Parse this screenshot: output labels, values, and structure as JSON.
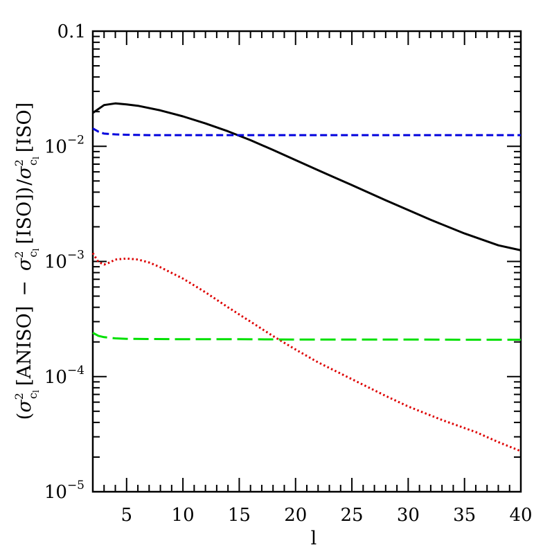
{
  "chart_data": {
    "type": "line",
    "title": "",
    "xlabel": "l",
    "ylabel": {
      "open": "(",
      "sigma": "σ",
      "sup": "2",
      "sub": "c",
      "subsub": "l",
      "aniso": "[ANISO]",
      "minus": "−",
      "iso": "[ISO])",
      "slash": "/",
      "iso2": "[ISO]"
    },
    "xlim": [
      2,
      40
    ],
    "ylim": [
      1e-05,
      0.1
    ],
    "yscale": "log",
    "x_ticks": [
      5,
      10,
      15,
      20,
      25,
      30,
      35,
      40
    ],
    "x_tick_labels": [
      "5",
      "10",
      "15",
      "20",
      "25",
      "30",
      "35",
      "40"
    ],
    "y_ticks": [
      {
        "value": 0.1,
        "base": "0.1",
        "exp": ""
      },
      {
        "value": 0.01,
        "base": "10",
        "exp": "−2"
      },
      {
        "value": 0.001,
        "base": "10",
        "exp": "−3"
      },
      {
        "value": 0.0001,
        "base": "10",
        "exp": "−4"
      },
      {
        "value": 1e-05,
        "base": "10",
        "exp": "−5"
      }
    ],
    "series": [
      {
        "color": "#000000",
        "style": "solid",
        "x": [
          2,
          3,
          4,
          5,
          6,
          8,
          10,
          12,
          14,
          16,
          18,
          20,
          22,
          25,
          28,
          30,
          32,
          35,
          38,
          40
        ],
        "y": [
          0.0195,
          0.0228,
          0.0236,
          0.0231,
          0.0225,
          0.0205,
          0.0182,
          0.0158,
          0.0135,
          0.0113,
          0.0093,
          0.0076,
          0.0062,
          0.0046,
          0.0034,
          0.0028,
          0.0023,
          0.00175,
          0.00138,
          0.00125
        ]
      },
      {
        "color": "#0000dd",
        "style": "dashed",
        "x": [
          2,
          2.5,
          3,
          4,
          5,
          7,
          10,
          15,
          20,
          25,
          30,
          35,
          40
        ],
        "y": [
          0.0143,
          0.0134,
          0.0129,
          0.0127,
          0.0126,
          0.0125,
          0.0125,
          0.0125,
          0.0125,
          0.0125,
          0.0125,
          0.0125,
          0.0125
        ]
      },
      {
        "color": "#dd0000",
        "style": "dotted",
        "x": [
          2,
          2.5,
          3,
          3.5,
          4,
          5,
          6,
          7,
          8,
          10,
          12,
          14,
          16,
          18,
          20,
          22,
          25,
          28,
          30,
          33,
          36,
          38,
          40
        ],
        "y": [
          0.00118,
          0.00099,
          0.00094,
          0.00098,
          0.00104,
          0.00106,
          0.00104,
          0.00098,
          0.00089,
          0.00071,
          0.00054,
          0.0004,
          0.0003,
          0.000225,
          0.000172,
          0.000133,
          9.5e-05,
          6.8e-05,
          5.5e-05,
          4.2e-05,
          3.3e-05,
          2.7e-05,
          2.25e-05
        ]
      },
      {
        "color": "#00e000",
        "style": "longdash",
        "x": [
          2,
          2.5,
          3,
          4,
          5,
          7,
          10,
          15,
          20,
          25,
          30,
          35,
          40
        ],
        "y": [
          0.00024,
          0.000226,
          0.00022,
          0.000215,
          0.000213,
          0.000212,
          0.000211,
          0.000211,
          0.00021,
          0.00021,
          0.00021,
          0.000209,
          0.000209
        ]
      }
    ]
  }
}
